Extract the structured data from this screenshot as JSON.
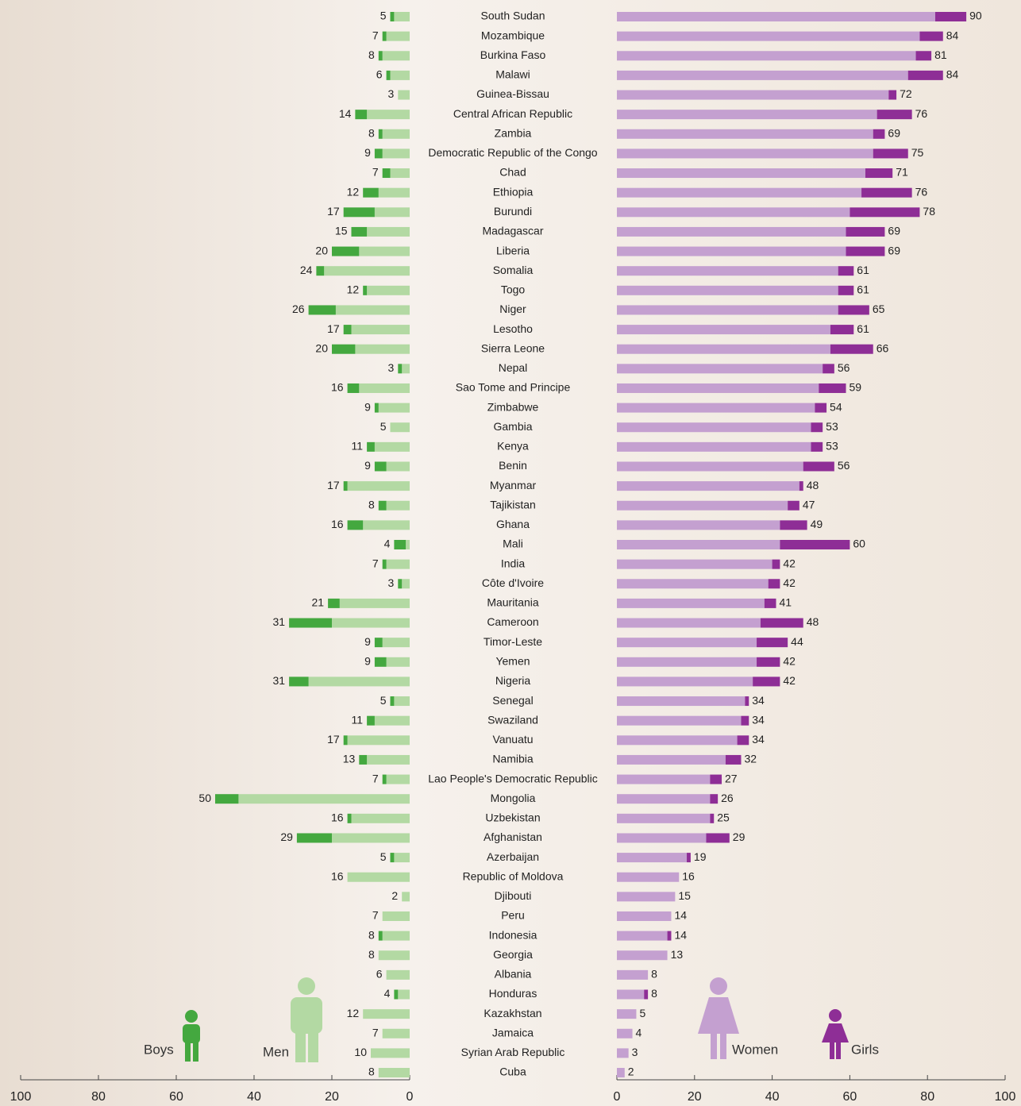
{
  "chart_data": {
    "type": "butterfly-stacked-bar",
    "categories": [
      "South Sudan",
      "Mozambique",
      "Burkina Faso",
      "Malawi",
      "Guinea-Bissau",
      "Central African Republic",
      "Zambia",
      "Democratic Republic of the Congo",
      "Chad",
      "Ethiopia",
      "Burundi",
      "Madagascar",
      "Liberia",
      "Somalia",
      "Togo",
      "Niger",
      "Lesotho",
      "Sierra Leone",
      "Nepal",
      "Sao Tome and Principe",
      "Zimbabwe",
      "Gambia",
      "Kenya",
      "Benin",
      "Myanmar",
      "Tajikistan",
      "Ghana",
      "Mali",
      "India",
      "Côte d'Ivoire",
      "Mauritania",
      "Cameroon",
      "Timor-Leste",
      "Yemen",
      "Nigeria",
      "Senegal",
      "Swaziland",
      "Vanuatu",
      "Namibia",
      "Lao People's  Democratic Republic",
      "Mongolia",
      "Uzbekistan",
      "Afghanistan",
      "Azerbaijan",
      "Republic of Moldova",
      "Djibouti",
      "Peru",
      "Indonesia",
      "Georgia",
      "Albania",
      "Honduras",
      "Kazakhstan",
      "Jamaica",
      "Syrian Arab Republic",
      "Cuba"
    ],
    "series": [
      {
        "name": "Men",
        "color": "#b3d9a3",
        "side": "left",
        "values": [
          4,
          6,
          7,
          5,
          3,
          11,
          7,
          7,
          5,
          8,
          9,
          11,
          13,
          22,
          11,
          19,
          15,
          14,
          2,
          13,
          8,
          5,
          9,
          6,
          16,
          6,
          12,
          1,
          6,
          2,
          18,
          20,
          7,
          6,
          26,
          4,
          9,
          16,
          11,
          6,
          44,
          15,
          20,
          4,
          16,
          2,
          7,
          7,
          8,
          6,
          3,
          12,
          7,
          10,
          8
        ]
      },
      {
        "name": "Boys",
        "color": "#44a83f",
        "side": "left",
        "values": [
          1,
          1,
          1,
          1,
          0,
          3,
          1,
          2,
          2,
          4,
          8,
          4,
          7,
          2,
          1,
          7,
          2,
          6,
          1,
          3,
          1,
          0,
          2,
          3,
          1,
          2,
          4,
          3,
          1,
          1,
          3,
          11,
          2,
          3,
          5,
          1,
          2,
          1,
          2,
          1,
          6,
          1,
          9,
          1,
          0,
          0,
          0,
          1,
          0,
          0,
          1,
          0,
          0,
          0,
          0
        ]
      },
      {
        "name": "Women",
        "color": "#c4a0d0",
        "side": "right",
        "values": [
          82,
          78,
          77,
          75,
          70,
          67,
          66,
          66,
          64,
          63,
          60,
          59,
          59,
          57,
          57,
          57,
          55,
          55,
          53,
          52,
          51,
          50,
          50,
          48,
          47,
          44,
          42,
          42,
          40,
          39,
          38,
          37,
          36,
          36,
          35,
          33,
          32,
          31,
          28,
          24,
          24,
          24,
          23,
          18,
          16,
          15,
          14,
          13,
          13,
          8,
          7,
          5,
          4,
          3,
          2
        ]
      },
      {
        "name": "Girls",
        "color": "#8e2e96",
        "side": "right",
        "values": [
          8,
          6,
          4,
          9,
          2,
          9,
          3,
          9,
          7,
          13,
          18,
          10,
          10,
          4,
          4,
          8,
          6,
          11,
          3,
          7,
          3,
          3,
          3,
          8,
          1,
          3,
          7,
          18,
          2,
          3,
          3,
          11,
          8,
          6,
          7,
          1,
          2,
          3,
          4,
          3,
          2,
          1,
          6,
          1,
          0,
          0,
          0,
          1,
          0,
          0,
          1,
          0,
          0,
          0,
          0
        ]
      }
    ],
    "totals_left": [
      5,
      7,
      8,
      6,
      3,
      14,
      8,
      9,
      7,
      12,
      17,
      15,
      20,
      24,
      12,
      26,
      17,
      20,
      3,
      16,
      9,
      5,
      11,
      9,
      17,
      8,
      16,
      4,
      7,
      3,
      21,
      31,
      9,
      9,
      31,
      5,
      11,
      17,
      13,
      7,
      50,
      16,
      29,
      5,
      16,
      2,
      7,
      8,
      8,
      6,
      4,
      12,
      7,
      10,
      8
    ],
    "totals_right": [
      90,
      84,
      81,
      84,
      72,
      76,
      69,
      75,
      71,
      76,
      78,
      69,
      69,
      61,
      61,
      65,
      61,
      66,
      56,
      59,
      54,
      53,
      53,
      56,
      48,
      47,
      49,
      60,
      42,
      42,
      41,
      48,
      44,
      42,
      42,
      34,
      34,
      34,
      32,
      27,
      26,
      25,
      29,
      19,
      16,
      15,
      14,
      14,
      13,
      8,
      8,
      5,
      4,
      3,
      2
    ],
    "xlim": [
      0,
      100
    ],
    "xticks": [
      0,
      20,
      40,
      60,
      80,
      100
    ]
  }
}
